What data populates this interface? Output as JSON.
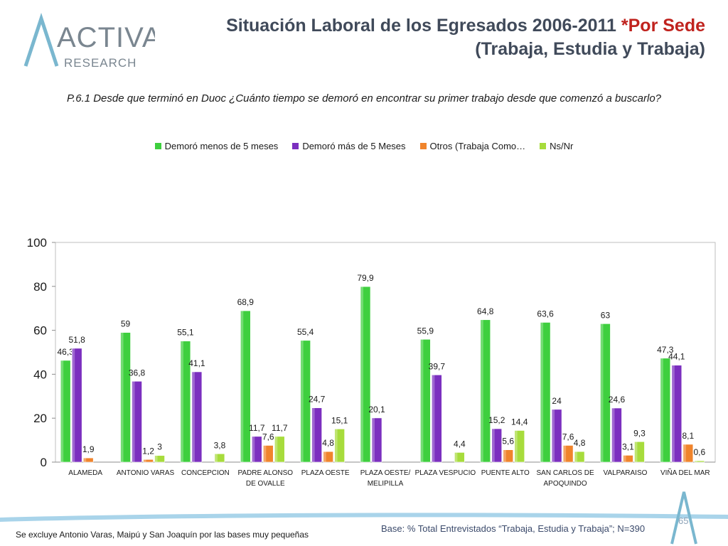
{
  "header": {
    "logo_main": "ACTIVA",
    "logo_sub": "RESEARCH",
    "title_line1": "Situación Laboral de los Egresados 2006-2011",
    "title_accent": "*Por Sede",
    "title_line3": "(Trabaja, Estudia y Trabaja)"
  },
  "question": "P.6.1 Desde que terminó en Duoc ¿Cuánto tiempo se demoró en encontrar su primer trabajo desde que comenzó a buscarlo?",
  "colors": {
    "green": "#3ecf3e",
    "purple": "#7b2fbf",
    "orange": "#f0842c",
    "lime": "#a7dc3c"
  },
  "chart_data": {
    "type": "bar",
    "title": "",
    "xlabel": "",
    "ylabel": "",
    "ylim": [
      0,
      100
    ],
    "yticks": [
      "0",
      "20",
      "40",
      "60",
      "80",
      "100"
    ],
    "categories": [
      "ALAMEDA",
      "ANTONIO VARAS",
      "CONCEPCION",
      "PADRE ALONSO DE OVALLE",
      "PLAZA OESTE",
      "PLAZA OESTE/ MELIPILLA",
      "PLAZA VESPUCIO",
      "PUENTE ALTO",
      "SAN CARLOS DE APOQUINDO",
      "VALPARAISO",
      "VIÑA DEL MAR"
    ],
    "series": [
      {
        "name": "Demoró menos de 5 meses",
        "values": [
          46.3,
          59,
          55.1,
          68.9,
          55.4,
          79.9,
          55.9,
          64.8,
          63.6,
          63,
          47.3
        ],
        "labels": [
          "46,3",
          "59",
          "55,1",
          "68,9",
          "55,4",
          "79,9",
          "55,9",
          "64,8",
          "63,6",
          "63",
          "47,3"
        ]
      },
      {
        "name": "Demoró más de 5 Meses",
        "values": [
          51.8,
          36.8,
          41.1,
          11.7,
          24.7,
          20.1,
          39.7,
          15.2,
          24,
          24.6,
          44.1
        ],
        "labels": [
          "51,8",
          "36,8",
          "41,1",
          "11,7",
          "24,7",
          "20,1",
          "39,7",
          "15,2",
          "24",
          "24,6",
          "44,1"
        ]
      },
      {
        "name": "Otros (Trabaja Como…",
        "values": [
          1.9,
          1.2,
          null,
          7.6,
          4.8,
          null,
          null,
          5.6,
          7.6,
          3.1,
          8.1
        ],
        "labels": [
          "1,9",
          "1,2",
          "",
          "7,6",
          "4,8",
          "",
          "",
          "5,6",
          "7,6",
          "3,1",
          "8,1"
        ]
      },
      {
        "name": "Ns/Nr",
        "values": [
          null,
          3,
          3.8,
          11.7,
          15.1,
          null,
          4.4,
          14.4,
          4.8,
          9.3,
          0.6
        ],
        "labels": [
          "",
          "3",
          "3,8",
          "11,7",
          "15,1",
          "",
          "4,4",
          "14,4",
          "4,8",
          "9,3",
          "0,6"
        ]
      }
    ]
  },
  "footer": {
    "note": "Se excluye Antonio Varas, Maipú y San Joaquín por las bases muy pequeñas",
    "base": "Base: % Total Entrevistados “Trabaja, Estudia y Trabaja”; N=390",
    "page": "65"
  }
}
